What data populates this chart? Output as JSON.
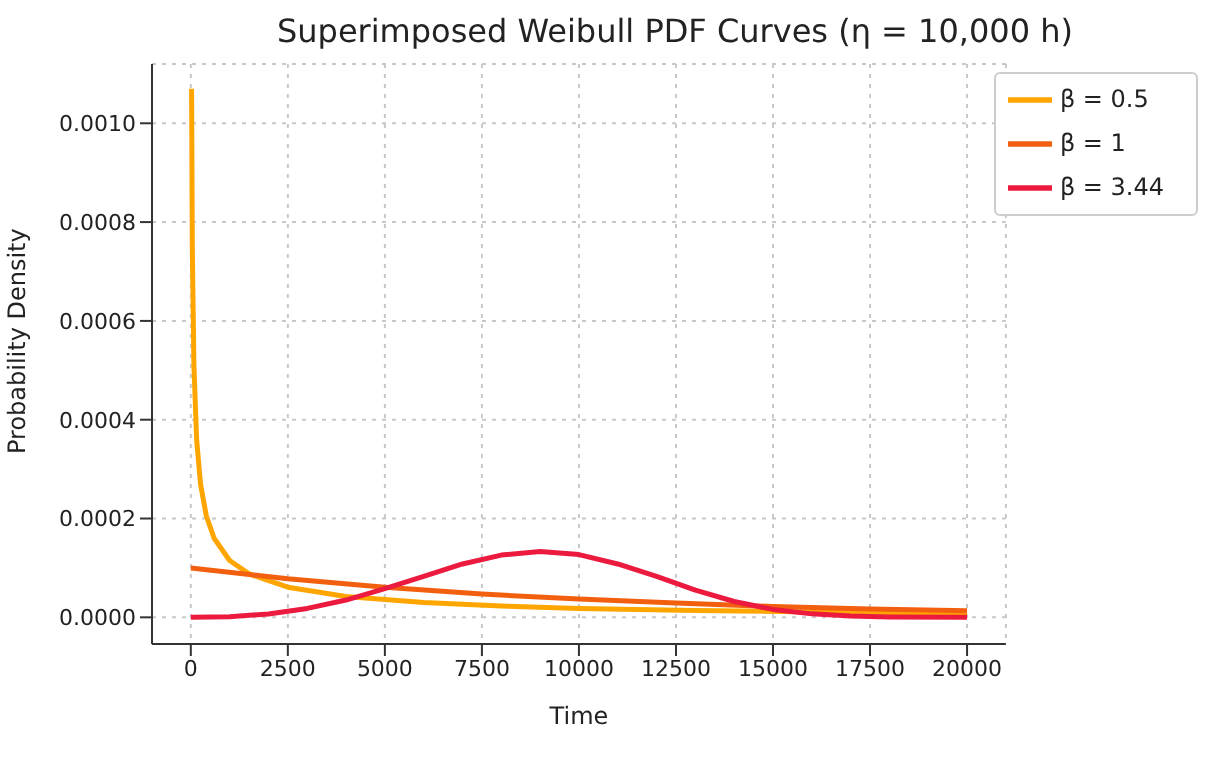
{
  "chart_data": {
    "type": "line",
    "title": "Superimposed Weibull PDF Curves (η = 10,000 h)",
    "xlabel": "Time",
    "ylabel": "Probability Density",
    "xlim": [
      -1000,
      21000
    ],
    "xticks": [
      0,
      2500,
      5000,
      7500,
      10000,
      12500,
      15000,
      17500,
      20000
    ],
    "ylim": [
      -5.4e-05,
      0.00112
    ],
    "yticks": [
      {
        "value": 0,
        "label": "0.0000"
      },
      {
        "value": 0.0002,
        "label": "0.0002"
      },
      {
        "value": 0.0004,
        "label": "0.0004"
      },
      {
        "value": 0.0006,
        "label": "0.0006"
      },
      {
        "value": 0.0008,
        "label": "0.0008"
      },
      {
        "value": 0.001,
        "label": "0.0010"
      }
    ],
    "grid": true,
    "legend": "top right",
    "marker": "none",
    "line_style": "solid",
    "series": [
      {
        "name": "β = 0.5",
        "color": "#ffa500",
        "x": [
          20,
          40,
          80,
          150,
          250,
          400,
          600,
          1000,
          1500,
          2500,
          4000,
          6000,
          8000,
          10000,
          13000,
          16000,
          20000
        ],
        "values": [
          0.00107,
          0.00074,
          0.00051,
          0.00036,
          0.00027,
          0.000205,
          0.00016,
          0.000115,
          8.8e-05,
          6.1e-05,
          4.2e-05,
          3e-05,
          2.3e-05,
          1.8e-05,
          1.4e-05,
          1.1e-05,
          8.6e-06
        ]
      },
      {
        "name": "β = 1",
        "color": "#f2600f",
        "x": [
          0,
          2500,
          5000,
          7500,
          10000,
          12500,
          15000,
          17500,
          20000
        ],
        "values": [
          0.0001,
          7.8e-05,
          6.1e-05,
          4.7e-05,
          3.7e-05,
          2.9e-05,
          2.2e-05,
          1.7e-05,
          1.35e-05
        ]
      },
      {
        "name": "β = 3.44",
        "color": "#eb1a3e",
        "x": [
          0,
          1000,
          2000,
          3000,
          4000,
          5000,
          6000,
          7000,
          8000,
          9000,
          10000,
          11000,
          12000,
          13000,
          14000,
          15000,
          16000,
          17000,
          18000,
          20000
        ],
        "values": [
          0,
          1.3e-06,
          6.8e-06,
          1.8e-05,
          3.5e-05,
          5.8e-05,
          8.3e-05,
          0.000108,
          0.000126,
          0.000133,
          0.000127,
          0.000108,
          8.3e-05,
          5.5e-05,
          3.2e-05,
          1.6e-05,
          7e-06,
          2.6e-06,
          7e-07,
          0
        ]
      }
    ]
  }
}
